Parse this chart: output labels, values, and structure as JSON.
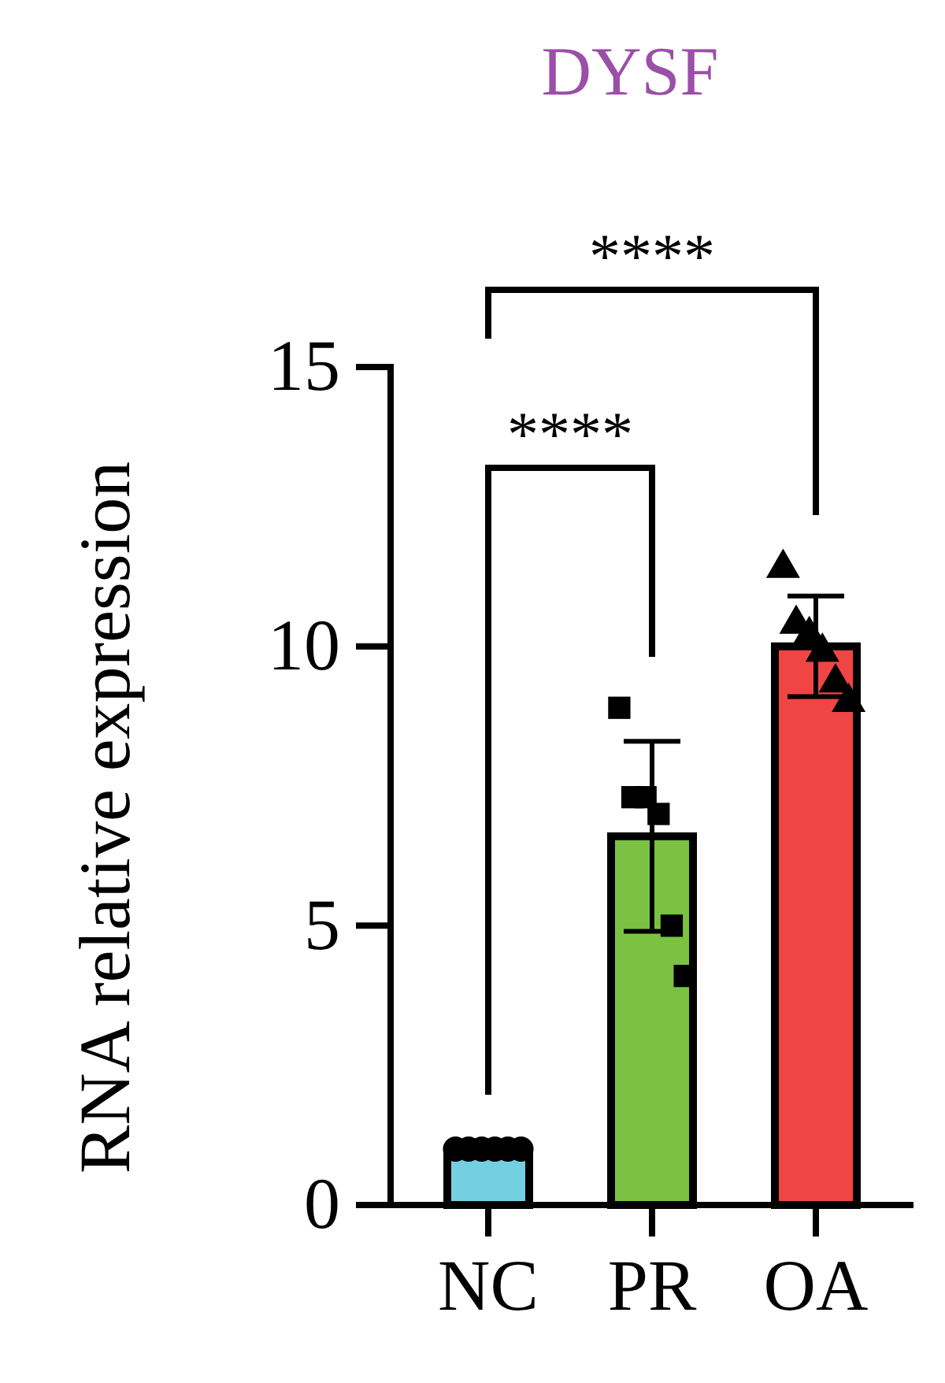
{
  "chart_data": {
    "type": "bar",
    "title": "DYSF",
    "ylabel": "RNA relative expression",
    "categories": [
      "NC",
      "PR",
      "OA"
    ],
    "series": [
      {
        "colors": [
          "#74cfe0",
          "#7cc242",
          "#ef4545"
        ],
        "values": [
          1.0,
          6.6,
          10.0
        ],
        "errors": [
          null,
          1.7,
          0.9
        ]
      },
      {
        "type": "scatter",
        "x": [
          "NC",
          "NC",
          "NC",
          "NC",
          "NC",
          "NC"
        ],
        "values": [
          1.0,
          1.0,
          1.0,
          1.0,
          1.0,
          1.0
        ],
        "marker": "circle",
        "color": "#000000"
      },
      {
        "type": "scatter",
        "x": [
          "PR",
          "PR",
          "PR",
          "PR",
          "PR",
          "PR"
        ],
        "values": [
          8.9,
          7.3,
          7.3,
          7.0,
          5.0,
          4.1
        ],
        "marker": "square",
        "color": "#000000"
      },
      {
        "type": "scatter",
        "x": [
          "OA",
          "OA",
          "OA",
          "OA",
          "OA",
          "OA"
        ],
        "values": [
          11.4,
          10.4,
          10.2,
          9.9,
          9.35,
          9.0
        ],
        "marker": "triangle",
        "color": "#000000"
      }
    ],
    "ylim": [
      0,
      15
    ],
    "yticks": [
      0,
      5,
      10,
      15
    ],
    "annotations": [
      "****",
      "****"
    ]
  }
}
